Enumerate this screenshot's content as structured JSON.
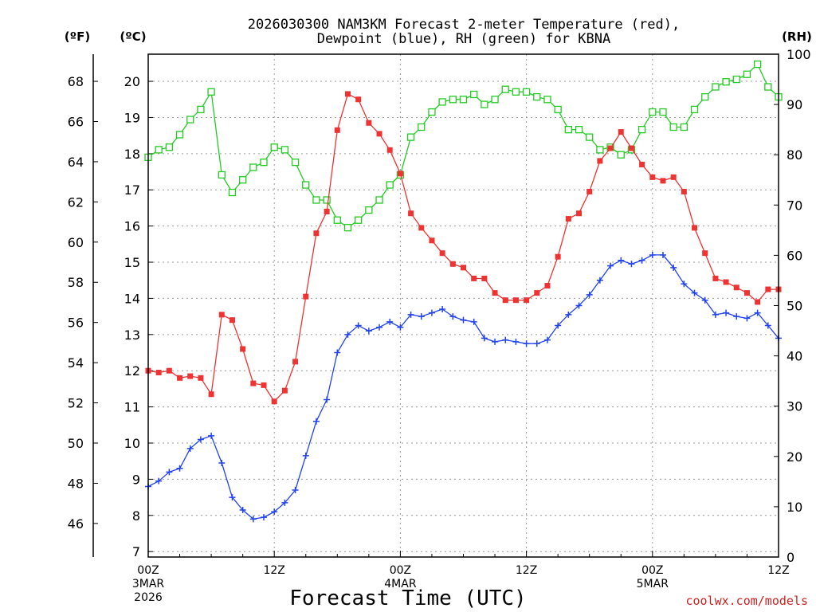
{
  "chart_data": {
    "type": "line",
    "title_line1": "2026030300 NAM3KM Forecast 2-meter Temperature (red),",
    "title_line2": "Dewpoint (blue), RH (green) for KBNA",
    "xlabel": "Forecast Time (UTC)",
    "credit": "coolwx.com/models",
    "unit_f": "(ºF)",
    "unit_c": "(ºC)",
    "unit_rh": "(RH)",
    "colors": {
      "temperature": "#ee3333",
      "dewpoint": "#2244ee",
      "rh": "#22cc22",
      "grid": "#999999",
      "credit": "#cc2222"
    },
    "x_hours_range": [
      0,
      60
    ],
    "celsius_range": [
      6.85,
      20.75
    ],
    "fahrenheit_ticks": [
      46,
      48,
      50,
      52,
      54,
      56,
      58,
      60,
      62,
      64,
      66,
      68
    ],
    "celsius_ticks": [
      7,
      8,
      9,
      10,
      11,
      12,
      13,
      14,
      15,
      16,
      17,
      18,
      19,
      20
    ],
    "rh_range": [
      0,
      100
    ],
    "rh_ticks": [
      0,
      10,
      20,
      30,
      40,
      50,
      60,
      70,
      80,
      90,
      100
    ],
    "x_ticks": [
      {
        "hour": 0,
        "label": "00Z",
        "sub1": "3MAR",
        "sub2": "2026"
      },
      {
        "hour": 12,
        "label": "12Z",
        "sub1": "",
        "sub2": ""
      },
      {
        "hour": 24,
        "label": "00Z",
        "sub1": "4MAR",
        "sub2": ""
      },
      {
        "hour": 36,
        "label": "12Z",
        "sub1": "",
        "sub2": ""
      },
      {
        "hour": 48,
        "label": "00Z",
        "sub1": "5MAR",
        "sub2": ""
      },
      {
        "hour": 60,
        "label": "12Z",
        "sub1": "",
        "sub2": ""
      }
    ],
    "x": [
      0,
      1,
      2,
      3,
      4,
      5,
      6,
      7,
      8,
      9,
      10,
      11,
      12,
      13,
      14,
      15,
      16,
      17,
      18,
      19,
      20,
      21,
      22,
      23,
      24,
      25,
      26,
      27,
      28,
      29,
      30,
      31,
      32,
      33,
      34,
      35,
      36,
      37,
      38,
      39,
      40,
      41,
      42,
      43,
      44,
      45,
      46,
      47,
      48,
      49,
      50,
      51,
      52,
      53,
      54,
      55,
      56,
      57,
      58,
      59,
      60
    ],
    "series": [
      {
        "name": "Temperature",
        "unit": "C",
        "values": [
          12.0,
          11.95,
          12.0,
          11.8,
          11.85,
          11.8,
          11.35,
          13.55,
          13.4,
          12.6,
          11.65,
          11.6,
          11.15,
          11.45,
          12.25,
          14.05,
          15.8,
          16.4,
          18.65,
          19.65,
          19.5,
          18.85,
          18.55,
          18.1,
          17.45,
          16.35,
          15.95,
          15.6,
          15.25,
          14.95,
          14.85,
          14.55,
          14.55,
          14.15,
          13.95,
          13.95,
          13.95,
          14.15,
          14.35,
          15.15,
          16.2,
          16.35,
          16.95,
          17.8,
          18.15,
          18.6,
          18.15,
          17.7,
          17.35,
          17.25,
          17.35,
          16.95,
          15.95,
          15.25,
          14.55,
          14.45,
          14.3,
          14.15,
          13.9,
          14.25,
          14.25
        ]
      },
      {
        "name": "Dewpoint",
        "unit": "C",
        "values": [
          8.8,
          8.95,
          9.2,
          9.3,
          9.85,
          10.1,
          10.2,
          9.45,
          8.5,
          8.15,
          7.9,
          7.95,
          8.1,
          8.35,
          8.7,
          9.65,
          10.6,
          11.2,
          12.5,
          13.0,
          13.25,
          13.1,
          13.2,
          13.35,
          13.2,
          13.55,
          13.5,
          13.6,
          13.7,
          13.5,
          13.4,
          13.35,
          12.9,
          12.8,
          12.85,
          12.8,
          12.75,
          12.75,
          12.85,
          13.25,
          13.55,
          13.8,
          14.1,
          14.5,
          14.9,
          15.05,
          14.95,
          15.05,
          15.2,
          15.2,
          14.85,
          14.4,
          14.15,
          13.95,
          13.55,
          13.6,
          13.5,
          13.45,
          13.6,
          13.25,
          12.9
        ]
      },
      {
        "name": "RH",
        "unit": "%",
        "values": [
          79.5,
          81.0,
          81.5,
          84.0,
          87.0,
          89.0,
          92.5,
          76.0,
          72.5,
          75.0,
          77.5,
          78.5,
          81.5,
          81.0,
          78.5,
          74.0,
          71.0,
          71.0,
          67.0,
          65.5,
          67.0,
          69.0,
          71.0,
          74.0,
          76.0,
          83.5,
          85.5,
          88.5,
          90.5,
          91.0,
          91.0,
          92.0,
          90.0,
          91.0,
          93.0,
          92.5,
          92.5,
          91.5,
          91.0,
          89.0,
          85.0,
          85.0,
          83.5,
          81.0,
          81.5,
          80.0,
          81.0,
          85.0,
          88.5,
          88.5,
          85.5,
          85.5,
          89.0,
          91.5,
          93.5,
          94.5,
          95.0,
          96.0,
          98.0,
          93.5,
          91.5
        ]
      }
    ]
  }
}
